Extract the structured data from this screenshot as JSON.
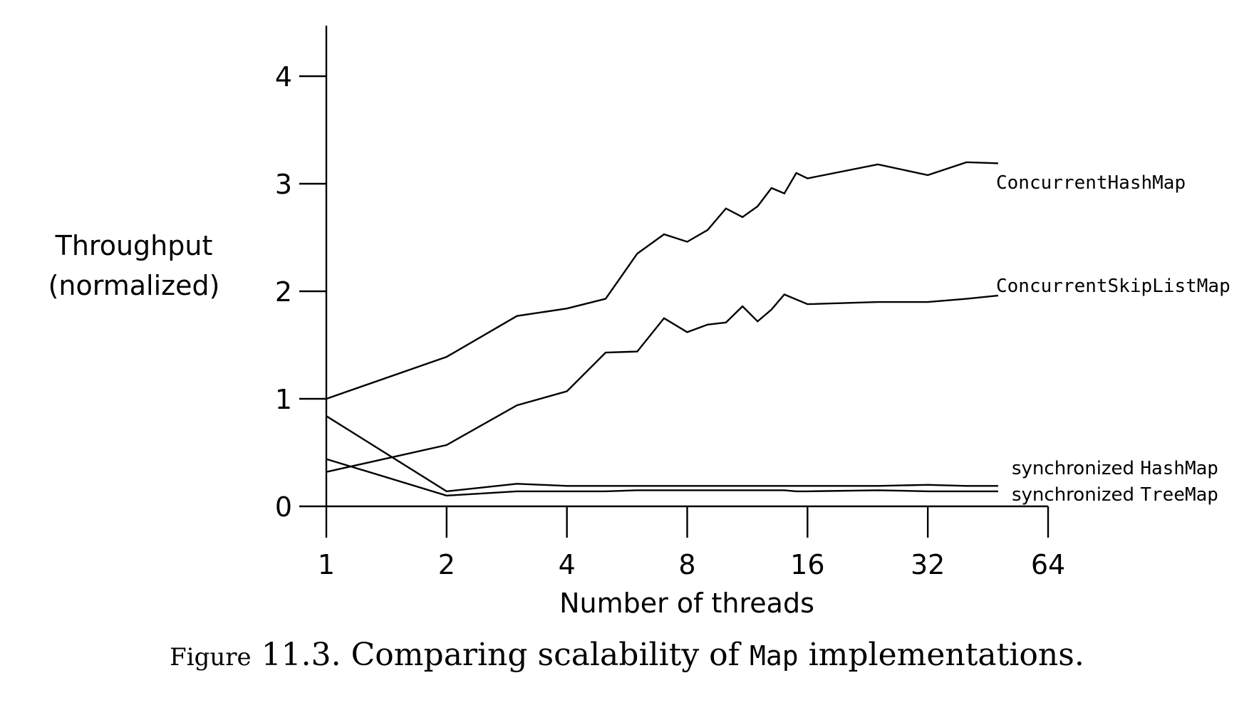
{
  "chart_data": {
    "type": "line",
    "xlabel": "Number of threads",
    "ylabel_lines": [
      "Throughput",
      "(normalized)"
    ],
    "x_scale": "log2",
    "x_ticks": [
      1,
      2,
      4,
      8,
      16,
      32,
      64
    ],
    "y_ticks": [
      0,
      1,
      2,
      3,
      4
    ],
    "xlim": [
      1,
      64
    ],
    "ylim": [
      0,
      4.5
    ],
    "grid": false,
    "legend": "inline-right",
    "series": [
      {
        "name": "ConcurrentHashMap",
        "label_style": "mono",
        "x": [
          1,
          2,
          3,
          4,
          5,
          6,
          7,
          8,
          9,
          10,
          11,
          12,
          13,
          14,
          15,
          16,
          24,
          32,
          40,
          48
        ],
        "values": [
          1.0,
          1.39,
          1.77,
          1.84,
          1.93,
          2.35,
          2.53,
          2.46,
          2.57,
          2.77,
          2.69,
          2.79,
          2.96,
          2.91,
          3.1,
          3.05,
          3.18,
          3.08,
          3.2,
          3.19
        ]
      },
      {
        "name": "ConcurrentSkipListMap",
        "label_style": "mono",
        "x": [
          1,
          2,
          3,
          4,
          5,
          6,
          7,
          8,
          9,
          10,
          11,
          12,
          13,
          14,
          16,
          24,
          32,
          40,
          48
        ],
        "values": [
          0.32,
          0.57,
          0.94,
          1.07,
          1.43,
          1.44,
          1.75,
          1.62,
          1.69,
          1.71,
          1.86,
          1.72,
          1.83,
          1.97,
          1.88,
          1.9,
          1.9,
          1.93,
          1.96
        ]
      },
      {
        "name": "synchronized HashMap",
        "label_style": "mixed",
        "label_parts": [
          "synchronized",
          "HashMap"
        ],
        "x": [
          1,
          2,
          3,
          4,
          6,
          8,
          16,
          24,
          32,
          40,
          48
        ],
        "values": [
          0.84,
          0.14,
          0.21,
          0.19,
          0.19,
          0.19,
          0.19,
          0.19,
          0.2,
          0.19,
          0.19
        ]
      },
      {
        "name": "synchronized TreeMap",
        "label_style": "mixed",
        "label_parts": [
          "synchronized",
          "TreeMap"
        ],
        "x": [
          1,
          2,
          3,
          4,
          5,
          6,
          8,
          12,
          14,
          15,
          16,
          24,
          32,
          40,
          48
        ],
        "values": [
          0.44,
          0.1,
          0.14,
          0.14,
          0.14,
          0.15,
          0.15,
          0.15,
          0.15,
          0.14,
          0.14,
          0.15,
          0.14,
          0.14,
          0.14
        ]
      }
    ]
  },
  "caption": {
    "figure_word": "Figure",
    "number": "11.3.",
    "text_before": " Comparing scalability of ",
    "code": "Map",
    "text_after": " implementations."
  }
}
